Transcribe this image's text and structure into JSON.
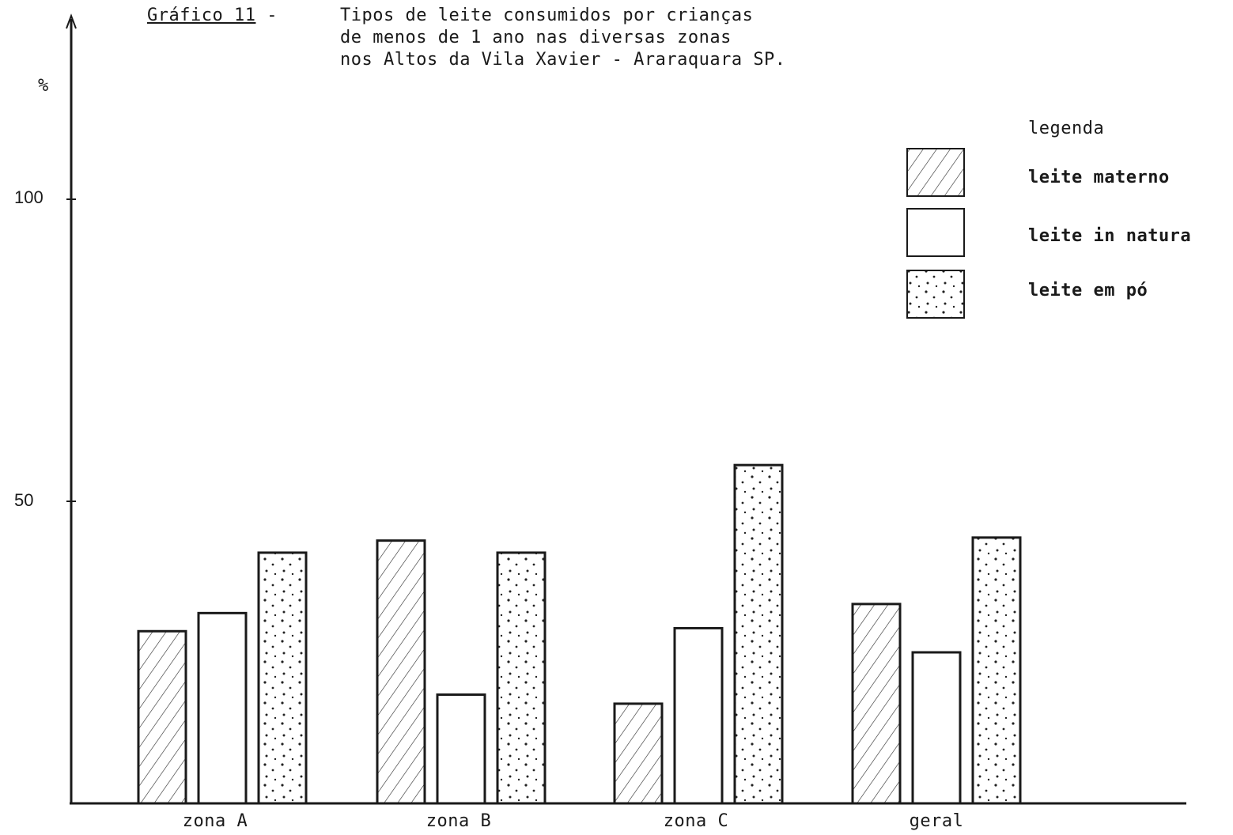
{
  "colors": {
    "ink": "#1a1a1a",
    "background": "#ffffff"
  },
  "title": {
    "label_prefix": "Gráfico 11",
    "label_dash": " -",
    "lines": [
      "Tipos de leite consumidos por crianças",
      "de menos de 1 ano nas diversas zonas",
      "nos Altos da Vila Xavier - Araraquara SP."
    ]
  },
  "legend": {
    "title": "legenda",
    "items": [
      {
        "label": "leite materno",
        "pattern": "hatch"
      },
      {
        "label": "leite in natura",
        "pattern": "blank"
      },
      {
        "label": "leite em pó",
        "pattern": "dots"
      }
    ]
  },
  "chart_data": {
    "type": "bar",
    "ylabel": "%",
    "xlabel": "",
    "ylim": [
      0,
      100
    ],
    "yticks": [
      "100",
      "50"
    ],
    "categories": [
      "zona A",
      "zona B",
      "zona C",
      "geral"
    ],
    "series": [
      {
        "name": "leite materno",
        "pattern": "hatch",
        "values": [
          28.5,
          43.5,
          16.5,
          33
        ]
      },
      {
        "name": "leite in natura",
        "pattern": "blank",
        "values": [
          31.5,
          18,
          29,
          25
        ]
      },
      {
        "name": "leite em pó",
        "pattern": "dots",
        "values": [
          41.5,
          41.5,
          56,
          44
        ]
      }
    ],
    "grid": false,
    "legend_position": "top-right"
  }
}
